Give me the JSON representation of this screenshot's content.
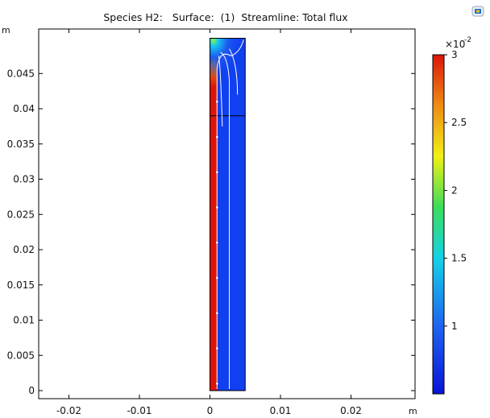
{
  "title": "Species H2:   Surface:  (1)  Streamline: Total flux",
  "x_axis": {
    "unit": "m",
    "ticks": [
      {
        "value": -0.02,
        "label": "-0.02"
      },
      {
        "value": -0.01,
        "label": "-0.01"
      },
      {
        "value": 0,
        "label": "0"
      },
      {
        "value": 0.01,
        "label": "0.01"
      },
      {
        "value": 0.02,
        "label": "0.02"
      }
    ]
  },
  "y_axis": {
    "unit": "m",
    "ticks": [
      {
        "value": 0,
        "label": "0"
      },
      {
        "value": 0.005,
        "label": "0.005"
      },
      {
        "value": 0.01,
        "label": "0.01"
      },
      {
        "value": 0.015,
        "label": "0.015"
      },
      {
        "value": 0.02,
        "label": "0.02"
      },
      {
        "value": 0.025,
        "label": "0.025"
      },
      {
        "value": 0.03,
        "label": "0.03"
      },
      {
        "value": 0.035,
        "label": "0.035"
      },
      {
        "value": 0.04,
        "label": "0.04"
      },
      {
        "value": 0.045,
        "label": "0.045"
      }
    ]
  },
  "colorbar": {
    "exponent_base": "×10",
    "exponent_power": "-2",
    "min": 0.5,
    "max": 3,
    "colormap": "rainbow",
    "ticks": [
      {
        "value": 1,
        "label": "1"
      },
      {
        "value": 1.5,
        "label": "1.5"
      },
      {
        "value": 2,
        "label": "2"
      },
      {
        "value": 2.5,
        "label": "2.5"
      },
      {
        "value": 3,
        "label": "3"
      }
    ]
  },
  "colors": {
    "low": "#0a1edc",
    "domain_fill": "#1040f0",
    "high": "#dc1e0a",
    "streamline": "#ffffff",
    "axis": "#000000"
  },
  "domain": {
    "x_range": [
      0,
      0.005
    ],
    "y_range": [
      0,
      0.05
    ],
    "interface_y": 0.039
  }
}
